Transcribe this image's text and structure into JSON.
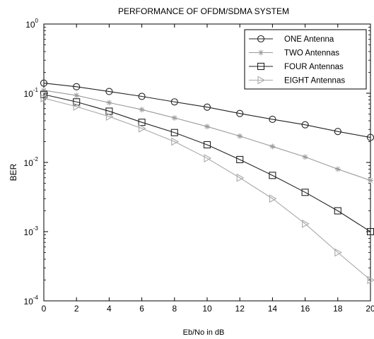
{
  "chart_data": {
    "type": "line",
    "title": "PERFORMANCE OF OFDM/SDMA SYSTEM",
    "xlabel": "Eb/No in dB",
    "ylabel": "BER",
    "xlim": [
      0,
      20
    ],
    "ylim": [
      0.0001,
      1
    ],
    "y_scale": "log",
    "grid": false,
    "legend_position": "top-right",
    "x_ticks": [
      "0",
      "2",
      "4",
      "6",
      "8",
      "10",
      "12",
      "14",
      "16",
      "18",
      "20"
    ],
    "y_ticks": [
      {
        "base": "10",
        "exp": "0"
      },
      {
        "base": "10",
        "exp": "-1"
      },
      {
        "base": "10",
        "exp": "-2"
      },
      {
        "base": "10",
        "exp": "-3"
      },
      {
        "base": "10",
        "exp": "-4"
      }
    ],
    "x": [
      0,
      2,
      4,
      6,
      8,
      10,
      12,
      14,
      16,
      18,
      20
    ],
    "series": [
      {
        "name": "ONE Antenna",
        "marker": "circle",
        "color": "#222222",
        "values": [
          0.14,
          0.124,
          0.106,
          0.09,
          0.075,
          0.063,
          0.051,
          0.042,
          0.035,
          0.028,
          0.023
        ]
      },
      {
        "name": "TWO Antennas",
        "marker": "asterisk",
        "color": "#9a9a9a",
        "values": [
          0.11,
          0.093,
          0.073,
          0.058,
          0.044,
          0.033,
          0.024,
          0.017,
          0.012,
          0.008,
          0.0055
        ]
      },
      {
        "name": "FOUR Antennas",
        "marker": "square",
        "color": "#222222",
        "values": [
          0.096,
          0.075,
          0.055,
          0.038,
          0.027,
          0.018,
          0.011,
          0.0065,
          0.0037,
          0.002,
          0.001
        ]
      },
      {
        "name": "EIGHT Antennas",
        "marker": "triangle-right",
        "color": "#a8a8a8",
        "values": [
          0.085,
          0.064,
          0.046,
          0.031,
          0.02,
          0.0115,
          0.006,
          0.003,
          0.0013,
          0.0005,
          0.0002
        ]
      }
    ]
  }
}
